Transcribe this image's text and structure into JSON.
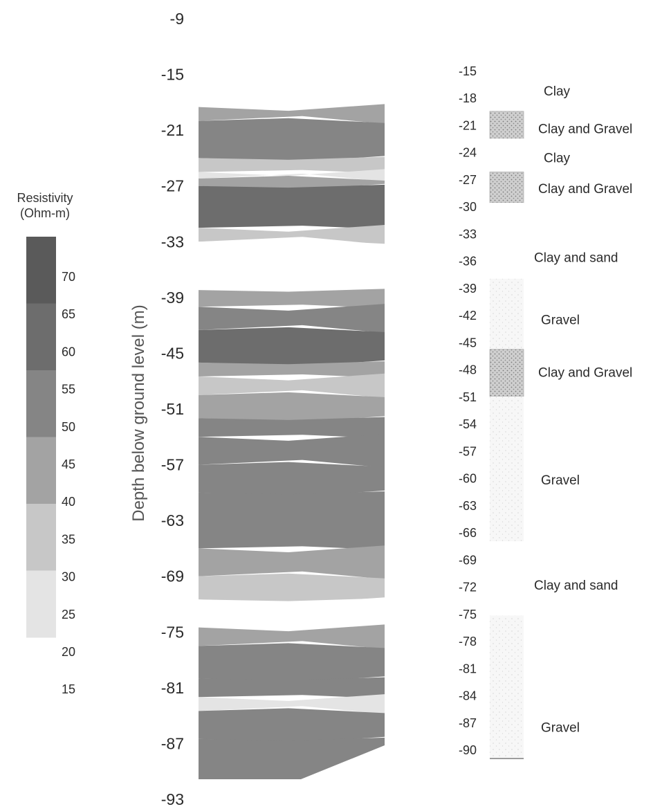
{
  "chart_data": {
    "type": "heatmap",
    "title": "",
    "ylabel": "Depth below ground level (m)",
    "depth_ticks": [
      -9,
      -15,
      -21,
      -27,
      -33,
      -39,
      -45,
      -51,
      -57,
      -63,
      -69,
      -75,
      -81,
      -87,
      -93
    ],
    "ylim": [
      -93,
      -9
    ],
    "legend": {
      "title_line1": "Resistivity",
      "title_line2": "(Ohm-m)",
      "ticks": [
        70,
        65,
        60,
        55,
        50,
        45,
        40,
        35,
        30,
        25,
        20,
        15
      ],
      "colors": [
        "#5a5a5a",
        "#6d6d6d",
        "#858585",
        "#a3a3a3",
        "#c7c7c7",
        "#e4e4e4"
      ]
    },
    "resistivity_bands": [
      {
        "top": -18.5,
        "bottom": -20.0,
        "value": 40
      },
      {
        "top": -20.0,
        "bottom": -24.0,
        "value": 55
      },
      {
        "top": -24.0,
        "bottom": -25.5,
        "value": 35
      },
      {
        "top": -25.5,
        "bottom": -26.2,
        "value": 25
      },
      {
        "top": -26.2,
        "bottom": -27.0,
        "value": 45
      },
      {
        "top": -27.0,
        "bottom": -31.5,
        "value": 65
      },
      {
        "top": -31.5,
        "bottom": -33.0,
        "value": 30
      },
      {
        "top": -33.0,
        "bottom": -38.2,
        "value": 20
      },
      {
        "top": -38.2,
        "bottom": -40.0,
        "value": 45
      },
      {
        "top": -40.0,
        "bottom": -42.5,
        "value": 50
      },
      {
        "top": -42.5,
        "bottom": -46.0,
        "value": 60
      },
      {
        "top": -46.0,
        "bottom": -47.5,
        "value": 45
      },
      {
        "top": -47.5,
        "bottom": -49.5,
        "value": 30
      },
      {
        "top": -49.5,
        "bottom": -52.0,
        "value": 40
      },
      {
        "top": -52.0,
        "bottom": -54.0,
        "value": 55
      },
      {
        "top": -54.0,
        "bottom": -57.0,
        "value": 50
      },
      {
        "top": -57.0,
        "bottom": -60.0,
        "value": 50
      },
      {
        "top": -60.0,
        "bottom": -66.0,
        "value": 55
      },
      {
        "top": -66.0,
        "bottom": -69.0,
        "value": 45
      },
      {
        "top": -69.0,
        "bottom": -71.5,
        "value": 35
      },
      {
        "top": -71.5,
        "bottom": -74.5,
        "value": 20
      },
      {
        "top": -74.5,
        "bottom": -76.5,
        "value": 40
      },
      {
        "top": -76.5,
        "bottom": -80.0,
        "value": 55
      },
      {
        "top": -80.0,
        "bottom": -82.0,
        "value": 50
      },
      {
        "top": -82.0,
        "bottom": -83.5,
        "value": 25
      },
      {
        "top": -83.5,
        "bottom": -86.5,
        "value": 50
      },
      {
        "top": -86.5,
        "bottom": -91.5,
        "value": 55
      },
      {
        "top": -91.5,
        "bottom": -93.0,
        "value": 40
      }
    ],
    "lithology": {
      "depth_ticks": [
        -15,
        -18,
        -21,
        -24,
        -27,
        -30,
        -33,
        -36,
        -39,
        -42,
        -45,
        -48,
        -51,
        -54,
        -57,
        -60,
        -63,
        -66,
        -69,
        -72,
        -75,
        -78,
        -81,
        -84,
        -87,
        -90
      ],
      "layers": [
        {
          "label": "Clay",
          "top": -18,
          "bottom": -19.5,
          "pattern": "blank",
          "label_depth": -17.2
        },
        {
          "label": "Clay and Gravel",
          "top": -19.5,
          "bottom": -22.5,
          "pattern": "dense",
          "label_depth": -21.4
        },
        {
          "label": "Clay",
          "top": -22.5,
          "bottom": -26.2,
          "pattern": "blank",
          "label_depth": -24.6
        },
        {
          "label": "Clay and Gravel",
          "top": -26.2,
          "bottom": -29.6,
          "pattern": "dense",
          "label_depth": -28.0
        },
        {
          "label": "Clay and sand",
          "top": -29.6,
          "bottom": -38.0,
          "pattern": "blank",
          "label_depth": -35.6
        },
        {
          "label": "Gravel",
          "top": -38.0,
          "bottom": -45.8,
          "pattern": "light",
          "label_depth": -42.5
        },
        {
          "label": "Clay and Gravel",
          "top": -45.8,
          "bottom": -51.0,
          "pattern": "dense",
          "label_depth": -48.3
        },
        {
          "label": "Gravel",
          "top": -51.0,
          "bottom": -67.0,
          "pattern": "light",
          "label_depth": -60.2
        },
        {
          "label": "Clay and sand",
          "top": -67.0,
          "bottom": -75.2,
          "pattern": "blank",
          "label_depth": -71.8
        },
        {
          "label": "Gravel",
          "top": -75.2,
          "bottom": -91.0,
          "pattern": "light",
          "label_depth": -87.5
        }
      ]
    }
  }
}
